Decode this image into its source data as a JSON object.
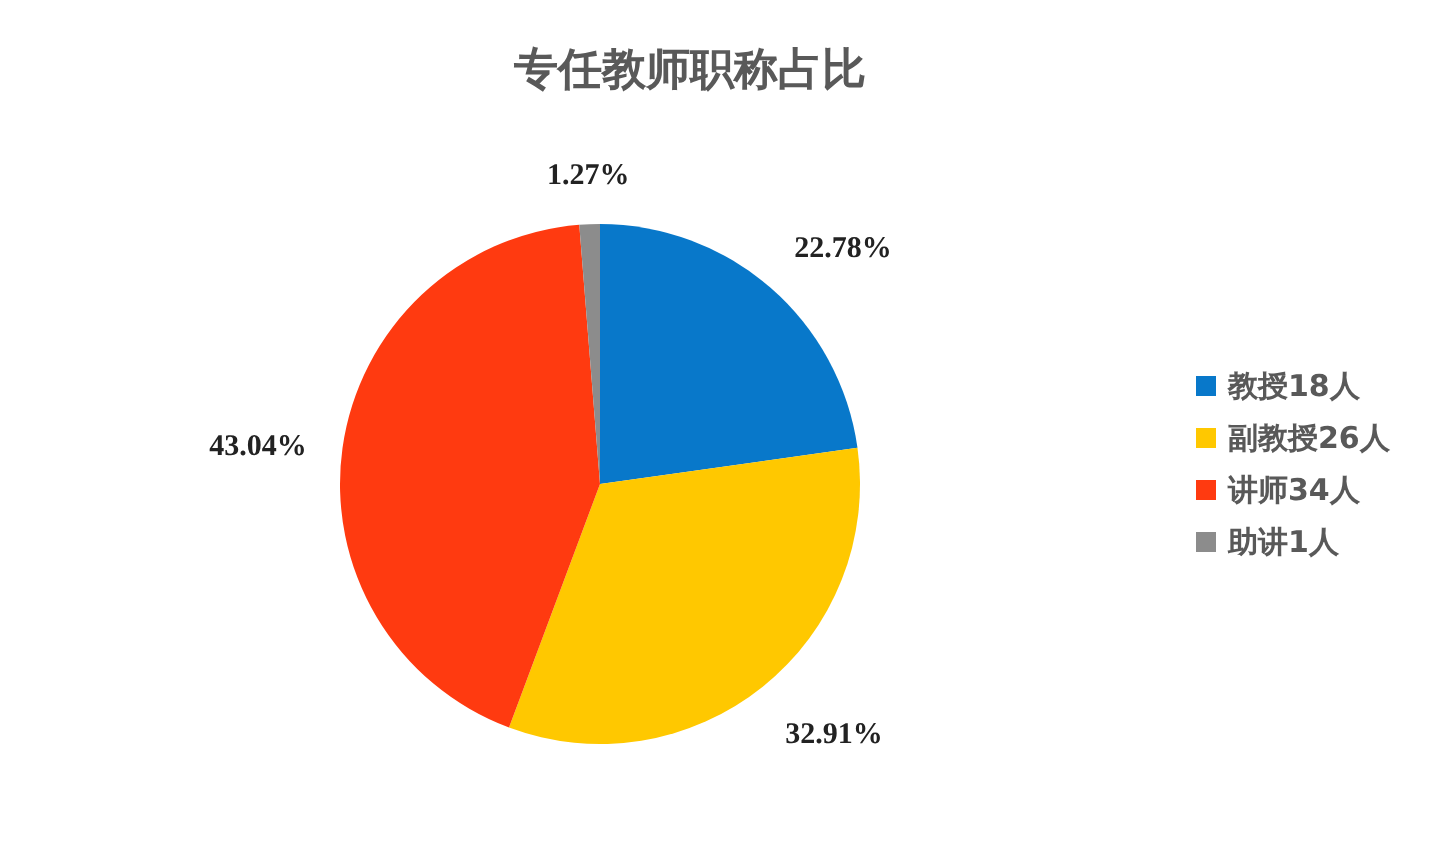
{
  "chart_data": {
    "type": "pie",
    "title": "专任教师职称占比",
    "categories": [
      "教授18人",
      "副教授26人",
      "讲师34人",
      "助讲1人"
    ],
    "values": [
      22.78,
      32.91,
      43.04,
      1.27
    ],
    "colors": [
      "#0878ca",
      "#ffc800",
      "#ff3a10",
      "#8c8c8c"
    ],
    "value_labels": [
      "22.78%",
      "32.91%",
      "43.04%",
      "1.27%"
    ],
    "legend": "right"
  }
}
